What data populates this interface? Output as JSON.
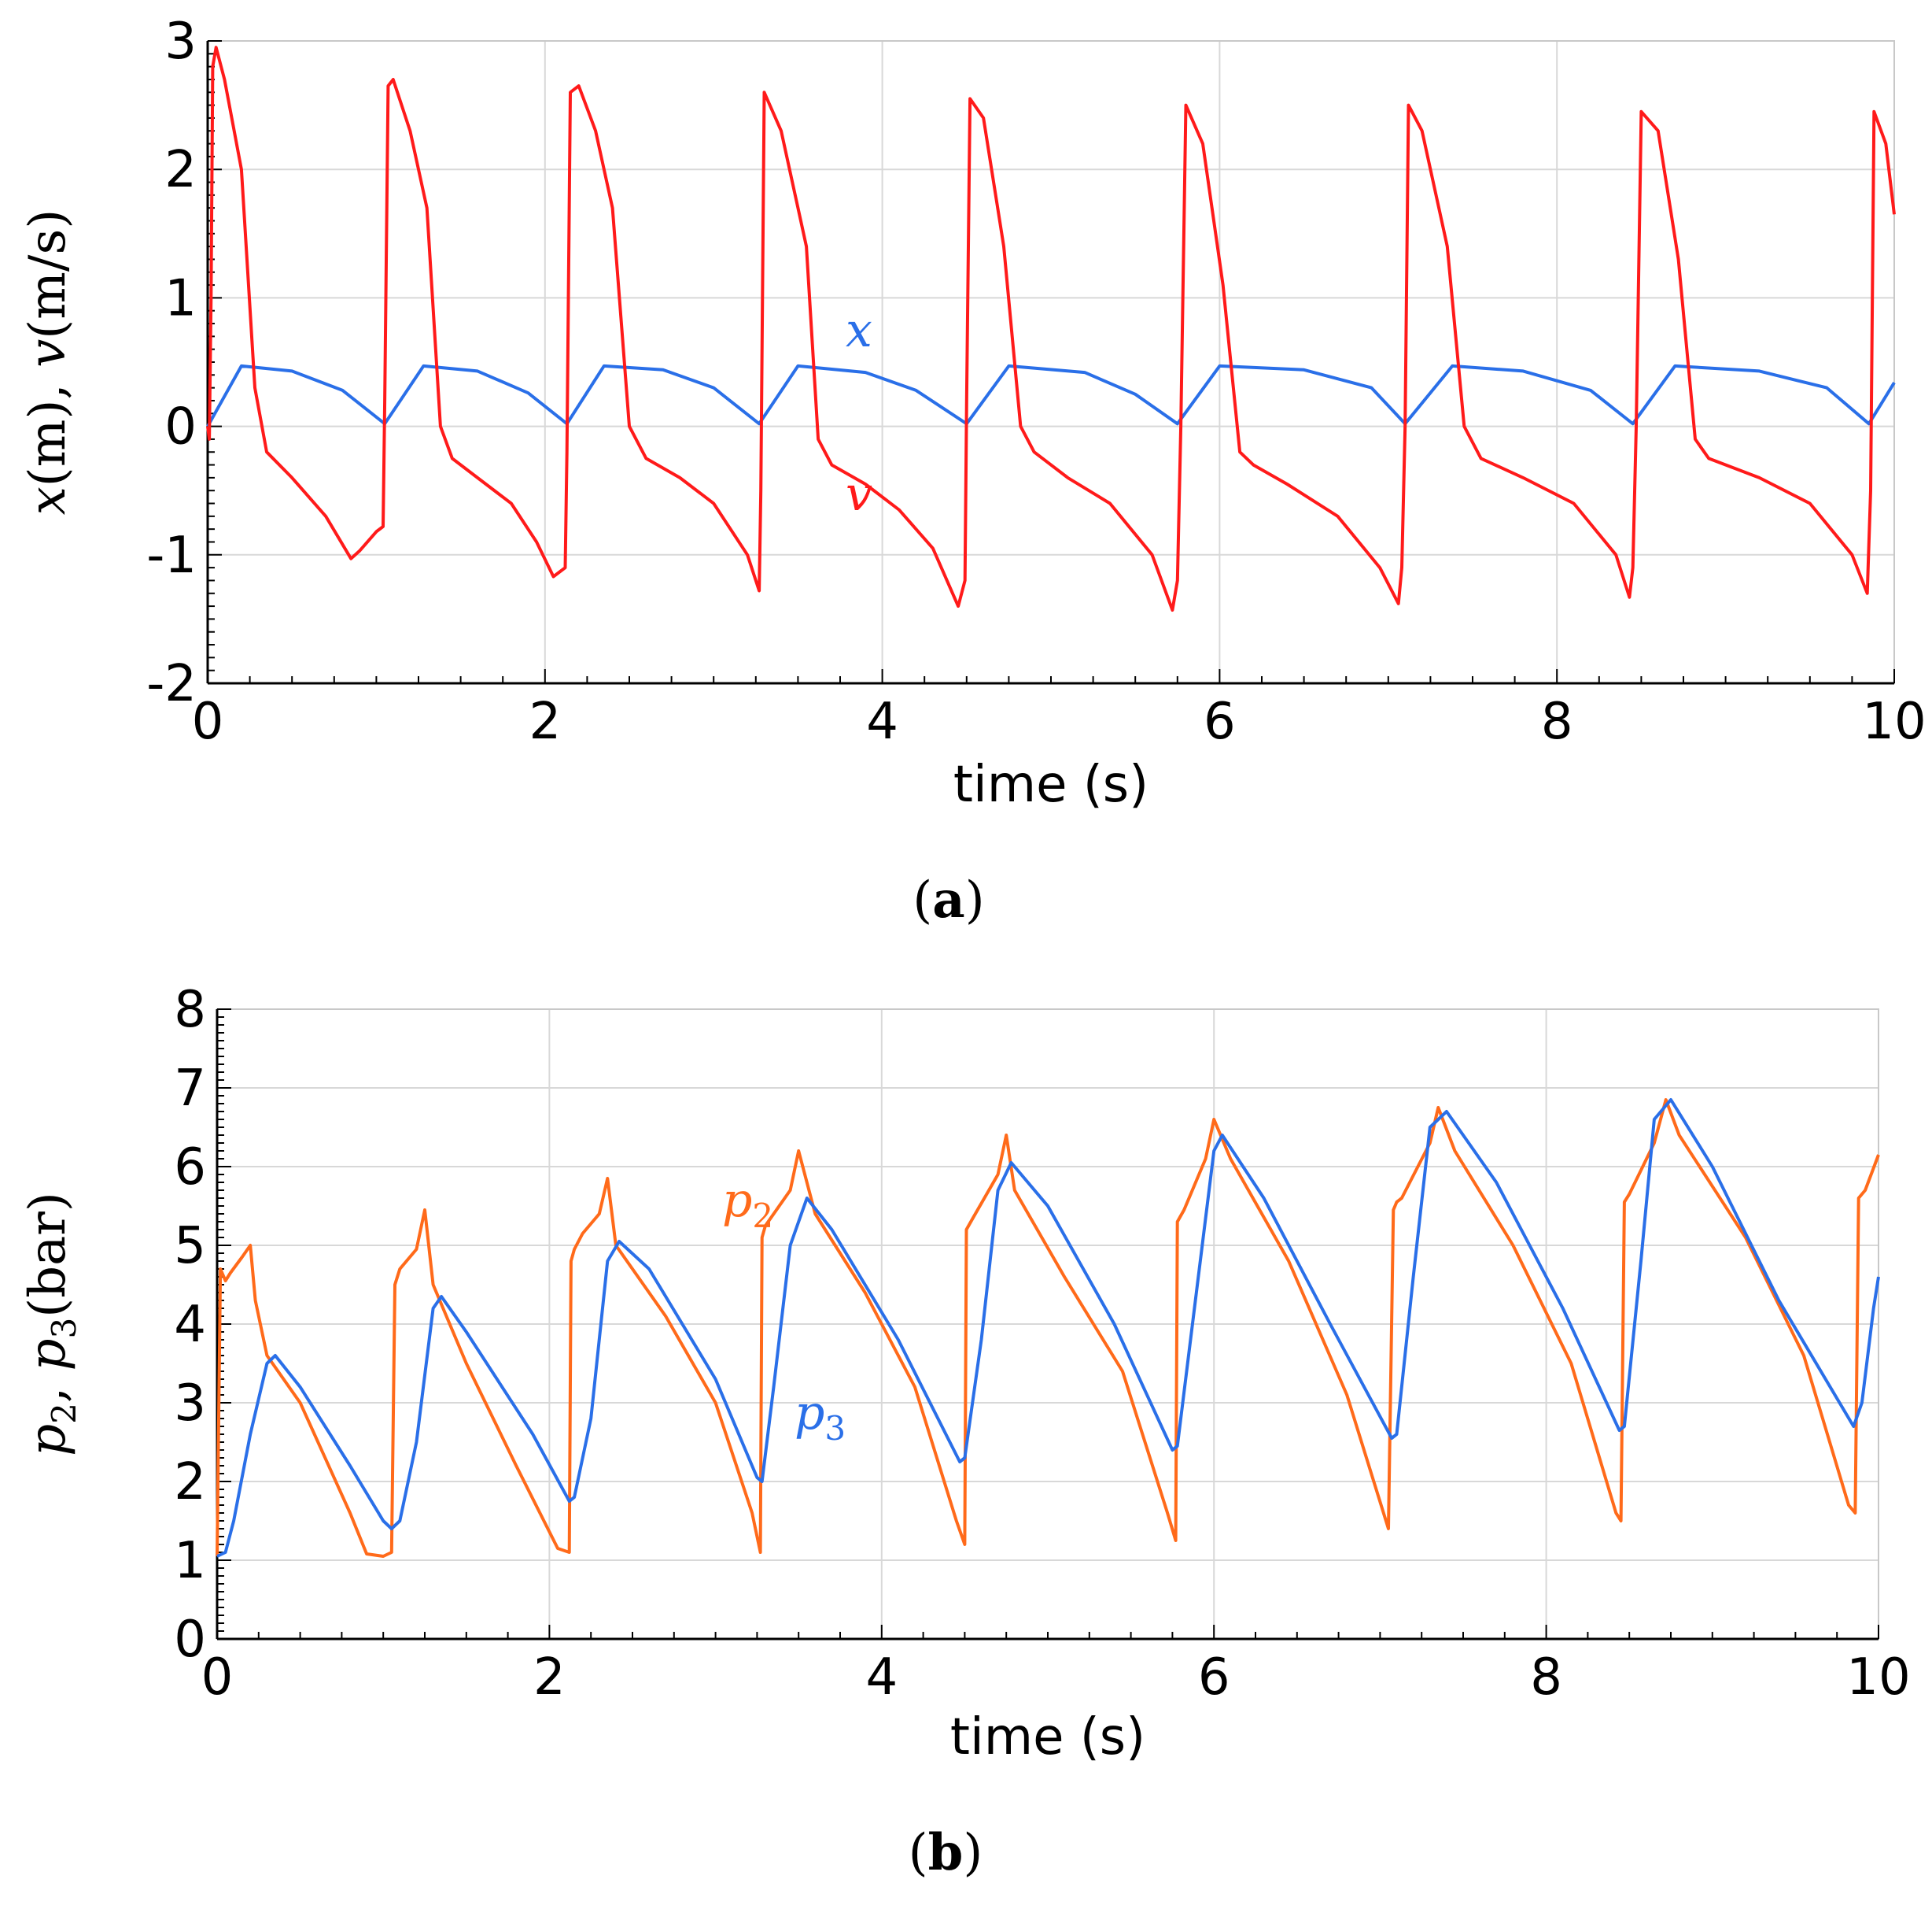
{
  "chart_data": [
    {
      "type": "line",
      "panel_label_open": "(",
      "panel_label_letter": "a",
      "panel_label_close": ")",
      "xlabel": "time (s)",
      "ylabel_parts": {
        "x": "x",
        "m": "(m)",
        "comma": ", ",
        "v": "v",
        "ms": "(m/s)"
      },
      "xlim": [
        0,
        10
      ],
      "ylim": [
        -2,
        3
      ],
      "xticks": [
        0,
        2,
        4,
        6,
        8,
        10
      ],
      "yticks": [
        -2,
        -1,
        0,
        1,
        2,
        3
      ],
      "grid": true,
      "series": [
        {
          "name": "x",
          "label": "x",
          "color": "#2a6fe8",
          "x": [
            0,
            0.2,
            0.5,
            0.8,
            1.05,
            1.28,
            1.6,
            1.9,
            2.13,
            2.35,
            2.7,
            3.0,
            3.27,
            3.5,
            3.9,
            4.2,
            4.5,
            4.75,
            5.2,
            5.5,
            5.75,
            6.0,
            6.5,
            6.9,
            7.1,
            7.38,
            7.8,
            8.2,
            8.45,
            8.7,
            9.2,
            9.6,
            9.85,
            10.0
          ],
          "y": [
            0,
            0.47,
            0.43,
            0.28,
            0.02,
            0.47,
            0.43,
            0.26,
            0.02,
            0.47,
            0.44,
            0.3,
            0.02,
            0.47,
            0.42,
            0.28,
            0.02,
            0.47,
            0.42,
            0.25,
            0.02,
            0.47,
            0.44,
            0.3,
            0.02,
            0.47,
            0.43,
            0.28,
            0.02,
            0.47,
            0.43,
            0.3,
            0.02,
            0.34
          ]
        },
        {
          "name": "v",
          "label": "v",
          "color": "#ff1a1a",
          "x": [
            0,
            0.01,
            0.02,
            0.03,
            0.05,
            0.1,
            0.2,
            0.28,
            0.35,
            0.5,
            0.7,
            0.85,
            0.9,
            1.0,
            1.04,
            1.05,
            1.07,
            1.1,
            1.2,
            1.3,
            1.38,
            1.45,
            1.6,
            1.8,
            1.95,
            2.05,
            2.12,
            2.13,
            2.15,
            2.2,
            2.3,
            2.4,
            2.5,
            2.6,
            2.8,
            3.0,
            3.2,
            3.27,
            3.28,
            3.3,
            3.4,
            3.55,
            3.62,
            3.7,
            3.9,
            4.1,
            4.3,
            4.45,
            4.49,
            4.5,
            4.52,
            4.6,
            4.72,
            4.82,
            4.9,
            5.1,
            5.35,
            5.6,
            5.72,
            5.75,
            5.77,
            5.8,
            5.9,
            6.02,
            6.12,
            6.2,
            6.4,
            6.7,
            6.95,
            7.06,
            7.08,
            7.1,
            7.12,
            7.2,
            7.35,
            7.45,
            7.55,
            7.8,
            8.1,
            8.35,
            8.43,
            8.45,
            8.47,
            8.5,
            8.6,
            8.72,
            8.82,
            8.9,
            9.2,
            9.5,
            9.75,
            9.84,
            9.86,
            9.88,
            9.95,
            10.0
          ],
          "y": [
            0,
            -0.1,
            1.0,
            2.8,
            2.95,
            2.7,
            2.0,
            0.3,
            -0.2,
            -0.4,
            -0.7,
            -1.03,
            -0.97,
            -0.82,
            -0.78,
            0.2,
            2.65,
            2.7,
            2.3,
            1.7,
            0.0,
            -0.25,
            -0.4,
            -0.6,
            -0.9,
            -1.17,
            -1.1,
            -0.2,
            2.6,
            2.65,
            2.3,
            1.7,
            0.0,
            -0.25,
            -0.4,
            -0.6,
            -1.0,
            -1.28,
            -0.5,
            2.6,
            2.3,
            1.4,
            -0.1,
            -0.3,
            -0.45,
            -0.65,
            -0.95,
            -1.4,
            -1.2,
            0.2,
            2.55,
            2.4,
            1.4,
            0.0,
            -0.2,
            -0.4,
            -0.6,
            -1.0,
            -1.43,
            -1.2,
            0.0,
            2.5,
            2.2,
            1.1,
            -0.2,
            -0.3,
            -0.45,
            -0.7,
            -1.1,
            -1.38,
            -1.1,
            0.0,
            2.5,
            2.3,
            1.4,
            0.0,
            -0.25,
            -0.4,
            -0.6,
            -1.0,
            -1.33,
            -1.1,
            0.0,
            2.45,
            2.3,
            1.3,
            -0.1,
            -0.25,
            -0.4,
            -0.6,
            -1.0,
            -1.3,
            -0.5,
            2.45,
            2.2,
            1.65
          ]
        }
      ]
    },
    {
      "type": "line",
      "panel_label_open": "(",
      "panel_label_letter": "b",
      "panel_label_close": ")",
      "xlabel": "time (s)",
      "ylabel_parts": {
        "p": "p",
        "sub2": "2",
        "comma": ", ",
        "sub3": "3",
        "bar": "(bar)"
      },
      "xlim": [
        0,
        10
      ],
      "ylim": [
        0,
        8
      ],
      "xticks": [
        0,
        2,
        4,
        6,
        8,
        10
      ],
      "yticks": [
        0,
        1,
        2,
        3,
        4,
        5,
        6,
        7,
        8
      ],
      "grid": true,
      "series": [
        {
          "name": "p2",
          "label": "p",
          "sub": "2",
          "color": "#ff6a1a",
          "x": [
            0,
            0.02,
            0.05,
            0.08,
            0.15,
            0.2,
            0.23,
            0.3,
            0.5,
            0.8,
            0.9,
            1.0,
            1.05,
            1.07,
            1.1,
            1.2,
            1.25,
            1.3,
            1.5,
            1.8,
            2.05,
            2.12,
            2.13,
            2.15,
            2.2,
            2.3,
            2.35,
            2.4,
            2.7,
            3.0,
            3.22,
            3.27,
            3.28,
            3.3,
            3.45,
            3.5,
            3.6,
            3.9,
            4.2,
            4.45,
            4.5,
            4.51,
            4.55,
            4.7,
            4.75,
            4.8,
            5.1,
            5.45,
            5.72,
            5.77,
            5.78,
            5.82,
            5.95,
            6.0,
            6.1,
            6.45,
            6.8,
            7.05,
            7.08,
            7.1,
            7.13,
            7.3,
            7.35,
            7.45,
            7.8,
            8.15,
            8.42,
            8.45,
            8.47,
            8.5,
            8.65,
            8.72,
            8.8,
            9.2,
            9.55,
            9.82,
            9.86,
            9.88,
            9.92,
            10.0
          ],
          "y": [
            1.05,
            4.7,
            4.55,
            4.65,
            4.85,
            5.0,
            4.3,
            3.6,
            3.0,
            1.6,
            1.08,
            1.05,
            1.1,
            4.5,
            4.7,
            4.95,
            5.45,
            4.5,
            3.5,
            2.2,
            1.15,
            1.1,
            4.8,
            4.95,
            5.15,
            5.4,
            5.85,
            5.0,
            4.1,
            3.0,
            1.6,
            1.1,
            5.1,
            5.25,
            5.7,
            6.2,
            5.4,
            4.4,
            3.2,
            1.5,
            1.2,
            5.2,
            5.35,
            5.9,
            6.4,
            5.7,
            4.6,
            3.4,
            1.6,
            1.25,
            5.3,
            5.45,
            6.1,
            6.6,
            6.1,
            4.8,
            3.1,
            1.4,
            5.45,
            5.55,
            5.6,
            6.3,
            6.75,
            6.2,
            5.0,
            3.5,
            1.6,
            1.5,
            5.55,
            5.65,
            6.3,
            6.85,
            6.4,
            5.1,
            3.6,
            1.7,
            1.6,
            5.6,
            5.7,
            6.15
          ]
        },
        {
          "name": "p3",
          "label": "p",
          "sub": "3",
          "color": "#2a6fe8",
          "x": [
            0,
            0.05,
            0.1,
            0.2,
            0.3,
            0.35,
            0.5,
            0.8,
            1.0,
            1.05,
            1.1,
            1.2,
            1.3,
            1.35,
            1.5,
            1.9,
            2.12,
            2.15,
            2.25,
            2.35,
            2.42,
            2.6,
            3.0,
            3.25,
            3.28,
            3.35,
            3.45,
            3.55,
            3.7,
            4.1,
            4.47,
            4.5,
            4.6,
            4.7,
            4.78,
            5.0,
            5.4,
            5.75,
            5.78,
            5.9,
            6.0,
            6.05,
            6.3,
            6.7,
            7.07,
            7.1,
            7.2,
            7.3,
            7.4,
            7.7,
            8.1,
            8.44,
            8.47,
            8.57,
            8.65,
            8.75,
            9.0,
            9.4,
            9.85,
            9.9,
            9.97,
            10.0
          ],
          "y": [
            1.05,
            1.1,
            1.5,
            2.6,
            3.5,
            3.6,
            3.2,
            2.2,
            1.5,
            1.4,
            1.5,
            2.5,
            4.2,
            4.35,
            3.9,
            2.6,
            1.75,
            1.8,
            2.8,
            4.8,
            5.05,
            4.7,
            3.3,
            2.05,
            2.0,
            3.2,
            5.0,
            5.6,
            5.2,
            3.8,
            2.25,
            2.3,
            3.8,
            5.7,
            6.05,
            5.5,
            4.0,
            2.4,
            2.45,
            4.5,
            6.2,
            6.4,
            5.6,
            4.0,
            2.55,
            2.6,
            4.6,
            6.5,
            6.7,
            5.8,
            4.2,
            2.65,
            2.7,
            4.8,
            6.6,
            6.85,
            6.0,
            4.3,
            2.7,
            3.0,
            4.2,
            4.6
          ]
        }
      ]
    }
  ]
}
